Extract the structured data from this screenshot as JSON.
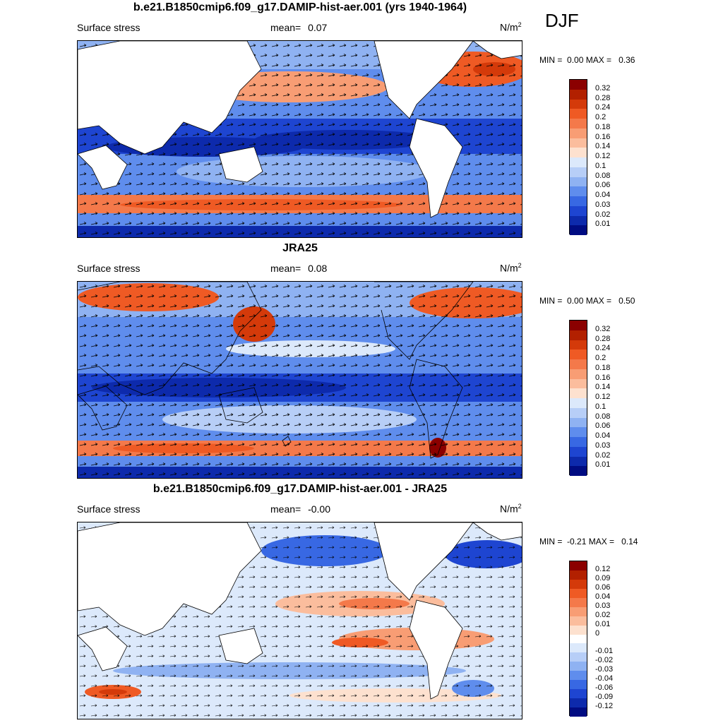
{
  "season": "DJF",
  "panels": [
    {
      "title": "b.e21.B1850cmip6.f09_g17.DAMIP-hist-aer.001 (yrs 1940-1964)",
      "variable": "Surface stress",
      "mean_label": "mean=",
      "mean_value": "0.07",
      "unit": "N/m",
      "unit_sup": "2",
      "min_label": "MIN =",
      "min_value": "0.00",
      "max_label": "MAX =",
      "max_value": "0.36",
      "colorbar_labels": [
        "0.32",
        "0.28",
        "0.24",
        "0.2",
        "0.18",
        "0.16",
        "0.14",
        "0.12",
        "0.1",
        "0.08",
        "0.06",
        "0.04",
        "0.03",
        "0.02",
        "0.01"
      ]
    },
    {
      "title": "JRA25",
      "variable": "Surface stress",
      "mean_label": "mean=",
      "mean_value": "0.08",
      "unit": "N/m",
      "unit_sup": "2",
      "min_label": "MIN =",
      "min_value": "0.00",
      "max_label": "MAX =",
      "max_value": "0.50",
      "colorbar_labels": [
        "0.32",
        "0.28",
        "0.24",
        "0.2",
        "0.18",
        "0.16",
        "0.14",
        "0.12",
        "0.1",
        "0.08",
        "0.06",
        "0.04",
        "0.03",
        "0.02",
        "0.01"
      ]
    },
    {
      "title": "b.e21.B1850cmip6.f09_g17.DAMIP-hist-aer.001 - JRA25",
      "variable": "Surface stress",
      "mean_label": "mean=",
      "mean_value": "-0.00",
      "unit": "N/m",
      "unit_sup": "2",
      "min_label": "MIN =",
      "min_value": "-0.21",
      "max_label": "MAX =",
      "max_value": "0.14",
      "colorbar_labels": [
        "0.12",
        "0.09",
        "0.06",
        "0.04",
        "0.03",
        "0.02",
        "0.01",
        "0",
        "-0.01",
        "-0.02",
        "-0.03",
        "-0.04",
        "-0.06",
        "-0.09",
        "-0.12"
      ]
    }
  ],
  "colors": {
    "abs_scale": [
      "#8b0000",
      "#b22000",
      "#d43a0a",
      "#ef5a24",
      "#f4794a",
      "#f89d74",
      "#fbbd9d",
      "#fde1cf",
      "#dce9fb",
      "#b7cef7",
      "#8fb2f2",
      "#5f8ded",
      "#3868e3",
      "#1e45d1",
      "#0d2aac",
      "#000c82"
    ],
    "diff_scale": [
      "#8b0000",
      "#b22000",
      "#d43a0a",
      "#ef5a24",
      "#f4794a",
      "#f89d74",
      "#fbbd9d",
      "#fde1cf",
      "#ffffff",
      "#dce9fb",
      "#b7cef7",
      "#8fb2f2",
      "#5f8ded",
      "#3868e3",
      "#1e45d1",
      "#0d2aac",
      "#000c82"
    ]
  }
}
